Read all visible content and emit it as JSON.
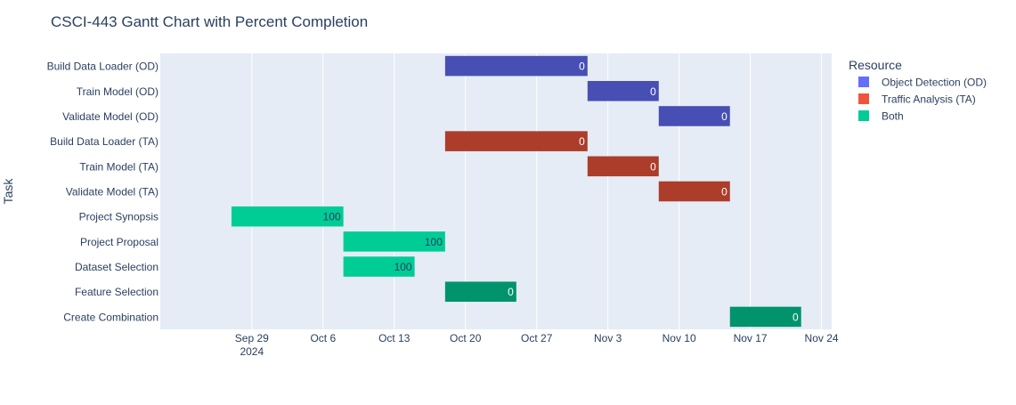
{
  "colors": {
    "plot_bg": "#e5ecf6",
    "grid": "#ffffff",
    "text": "#2a3f5f",
    "Object Detection (OD)": "#636efa",
    "Traffic Analysis (TA)": "#ef553b",
    "Both": "#00cc96"
  },
  "chart_data": {
    "type": "bar",
    "orientation": "horizontal-gantt",
    "title": "CSCI-443 Gantt Chart with Percent Completion",
    "ylabel": "Task",
    "xlabel": "",
    "x_axis_type": "date",
    "xlim": [
      "2024-09-20",
      "2024-11-25"
    ],
    "x_ticks": [
      {
        "date": "2024-09-29",
        "label": "Sep 29",
        "sublabel": "2024"
      },
      {
        "date": "2024-10-06",
        "label": "Oct 6"
      },
      {
        "date": "2024-10-13",
        "label": "Oct 13"
      },
      {
        "date": "2024-10-20",
        "label": "Oct 20"
      },
      {
        "date": "2024-10-27",
        "label": "Oct 27"
      },
      {
        "date": "2024-11-03",
        "label": "Nov 3"
      },
      {
        "date": "2024-11-10",
        "label": "Nov 10"
      },
      {
        "date": "2024-11-17",
        "label": "Nov 17"
      },
      {
        "date": "2024-11-24",
        "label": "Nov 24"
      }
    ],
    "grid": true,
    "legend": {
      "title": "Resource",
      "placement": "right",
      "entries": [
        "Object Detection (OD)",
        "Traffic Analysis (TA)",
        "Both"
      ]
    },
    "tasks": [
      {
        "task": "Build Data Loader (OD)",
        "start": "2024-10-18",
        "finish": "2024-11-01",
        "resource": "Object Detection (OD)",
        "completion": 0
      },
      {
        "task": "Train Model (OD)",
        "start": "2024-11-01",
        "finish": "2024-11-08",
        "resource": "Object Detection (OD)",
        "completion": 0
      },
      {
        "task": "Validate Model (OD)",
        "start": "2024-11-08",
        "finish": "2024-11-15",
        "resource": "Object Detection (OD)",
        "completion": 0
      },
      {
        "task": "Build Data Loader (TA)",
        "start": "2024-10-18",
        "finish": "2024-11-01",
        "resource": "Traffic Analysis (TA)",
        "completion": 0
      },
      {
        "task": "Train Model (TA)",
        "start": "2024-11-01",
        "finish": "2024-11-08",
        "resource": "Traffic Analysis (TA)",
        "completion": 0
      },
      {
        "task": "Validate Model (TA)",
        "start": "2024-11-08",
        "finish": "2024-11-15",
        "resource": "Traffic Analysis (TA)",
        "completion": 0
      },
      {
        "task": "Project Synopsis",
        "start": "2024-09-27",
        "finish": "2024-10-08",
        "resource": "Both",
        "completion": 100
      },
      {
        "task": "Project Proposal",
        "start": "2024-10-08",
        "finish": "2024-10-18",
        "resource": "Both",
        "completion": 100
      },
      {
        "task": "Dataset Selection",
        "start": "2024-10-08",
        "finish": "2024-10-15",
        "resource": "Both",
        "completion": 100
      },
      {
        "task": "Feature Selection",
        "start": "2024-10-18",
        "finish": "2024-10-25",
        "resource": "Both",
        "completion": 0
      },
      {
        "task": "Create Combination",
        "start": "2024-11-15",
        "finish": "2024-11-22",
        "resource": "Both",
        "completion": 0
      }
    ]
  }
}
